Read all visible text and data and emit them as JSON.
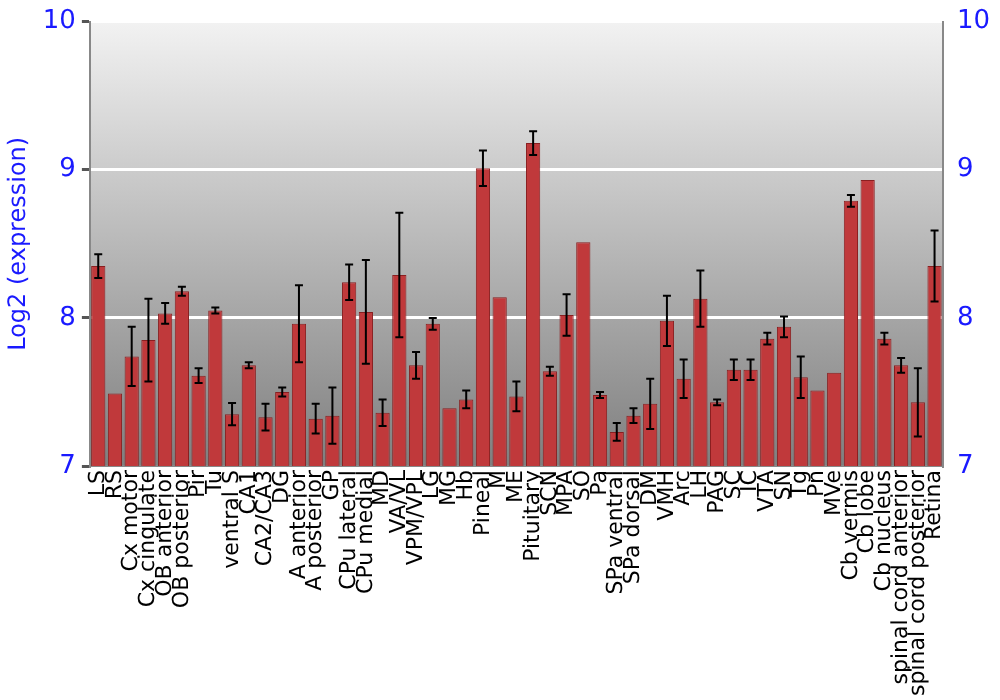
{
  "chart_data": {
    "type": "bar",
    "ylabel": "Log2 (expression)",
    "categories": [
      "LS",
      "RS",
      "Cx motor",
      "Cx cingulate",
      "OB anterior",
      "OB posterior",
      "Pir",
      "Tu",
      "ventral S",
      "CA1",
      "CA2/CA3",
      "DG",
      "A anterior",
      "A posterior",
      "GP",
      "CPu lateral",
      "CPu medial",
      "MD",
      "VA/VL",
      "VPM/VPL",
      "LG",
      "MG",
      "Hb",
      "Pineal",
      "M",
      "ME",
      "Pituitary",
      "SCN",
      "MPA",
      "SO",
      "Pa",
      "SPa ventral",
      "SPa dorsal",
      "DM",
      "VMH",
      "Arc",
      "LH",
      "PAG",
      "SC",
      "IC",
      "VTA",
      "SN",
      "Tg",
      "Pn",
      "MVe",
      "Cb vermis",
      "Cb lobe",
      "Cb nucleus",
      "spinal cord anterior",
      "spinal cord posterior",
      "Retina"
    ],
    "values": [
      8.35,
      7.49,
      7.74,
      7.85,
      8.03,
      8.18,
      7.61,
      8.05,
      7.35,
      7.68,
      7.33,
      7.5,
      7.96,
      7.32,
      7.34,
      8.24,
      8.04,
      7.36,
      8.29,
      7.68,
      7.96,
      7.39,
      7.45,
      9.01,
      8.14,
      7.47,
      9.18,
      7.64,
      8.02,
      8.51,
      7.48,
      7.23,
      7.34,
      7.42,
      7.98,
      7.59,
      8.13,
      7.43,
      7.65,
      7.65,
      7.86,
      7.94,
      7.6,
      7.51,
      7.63,
      8.79,
      8.93,
      7.86,
      7.68,
      7.43,
      8.35
    ],
    "errors": [
      0.08,
      null,
      0.2,
      0.28,
      0.07,
      0.03,
      0.05,
      0.02,
      0.075,
      0.02,
      0.09,
      0.03,
      0.26,
      0.1,
      0.19,
      0.12,
      0.35,
      0.09,
      0.42,
      0.09,
      0.04,
      null,
      0.06,
      0.12,
      null,
      0.1,
      0.08,
      0.03,
      0.14,
      null,
      0.02,
      0.06,
      0.05,
      0.17,
      0.17,
      0.13,
      0.19,
      0.02,
      0.07,
      0.07,
      0.04,
      0.07,
      0.14,
      null,
      null,
      0.04,
      null,
      0.04,
      0.05,
      0.23,
      0.24
    ],
    "color": "#c0393b",
    "ylim": [
      7,
      10
    ],
    "yticks": [
      7,
      8,
      9,
      10
    ],
    "y2lim": [
      7,
      10
    ],
    "y2ticks": [
      7,
      8,
      9,
      10
    ],
    "grid": "y",
    "legend": false
  }
}
